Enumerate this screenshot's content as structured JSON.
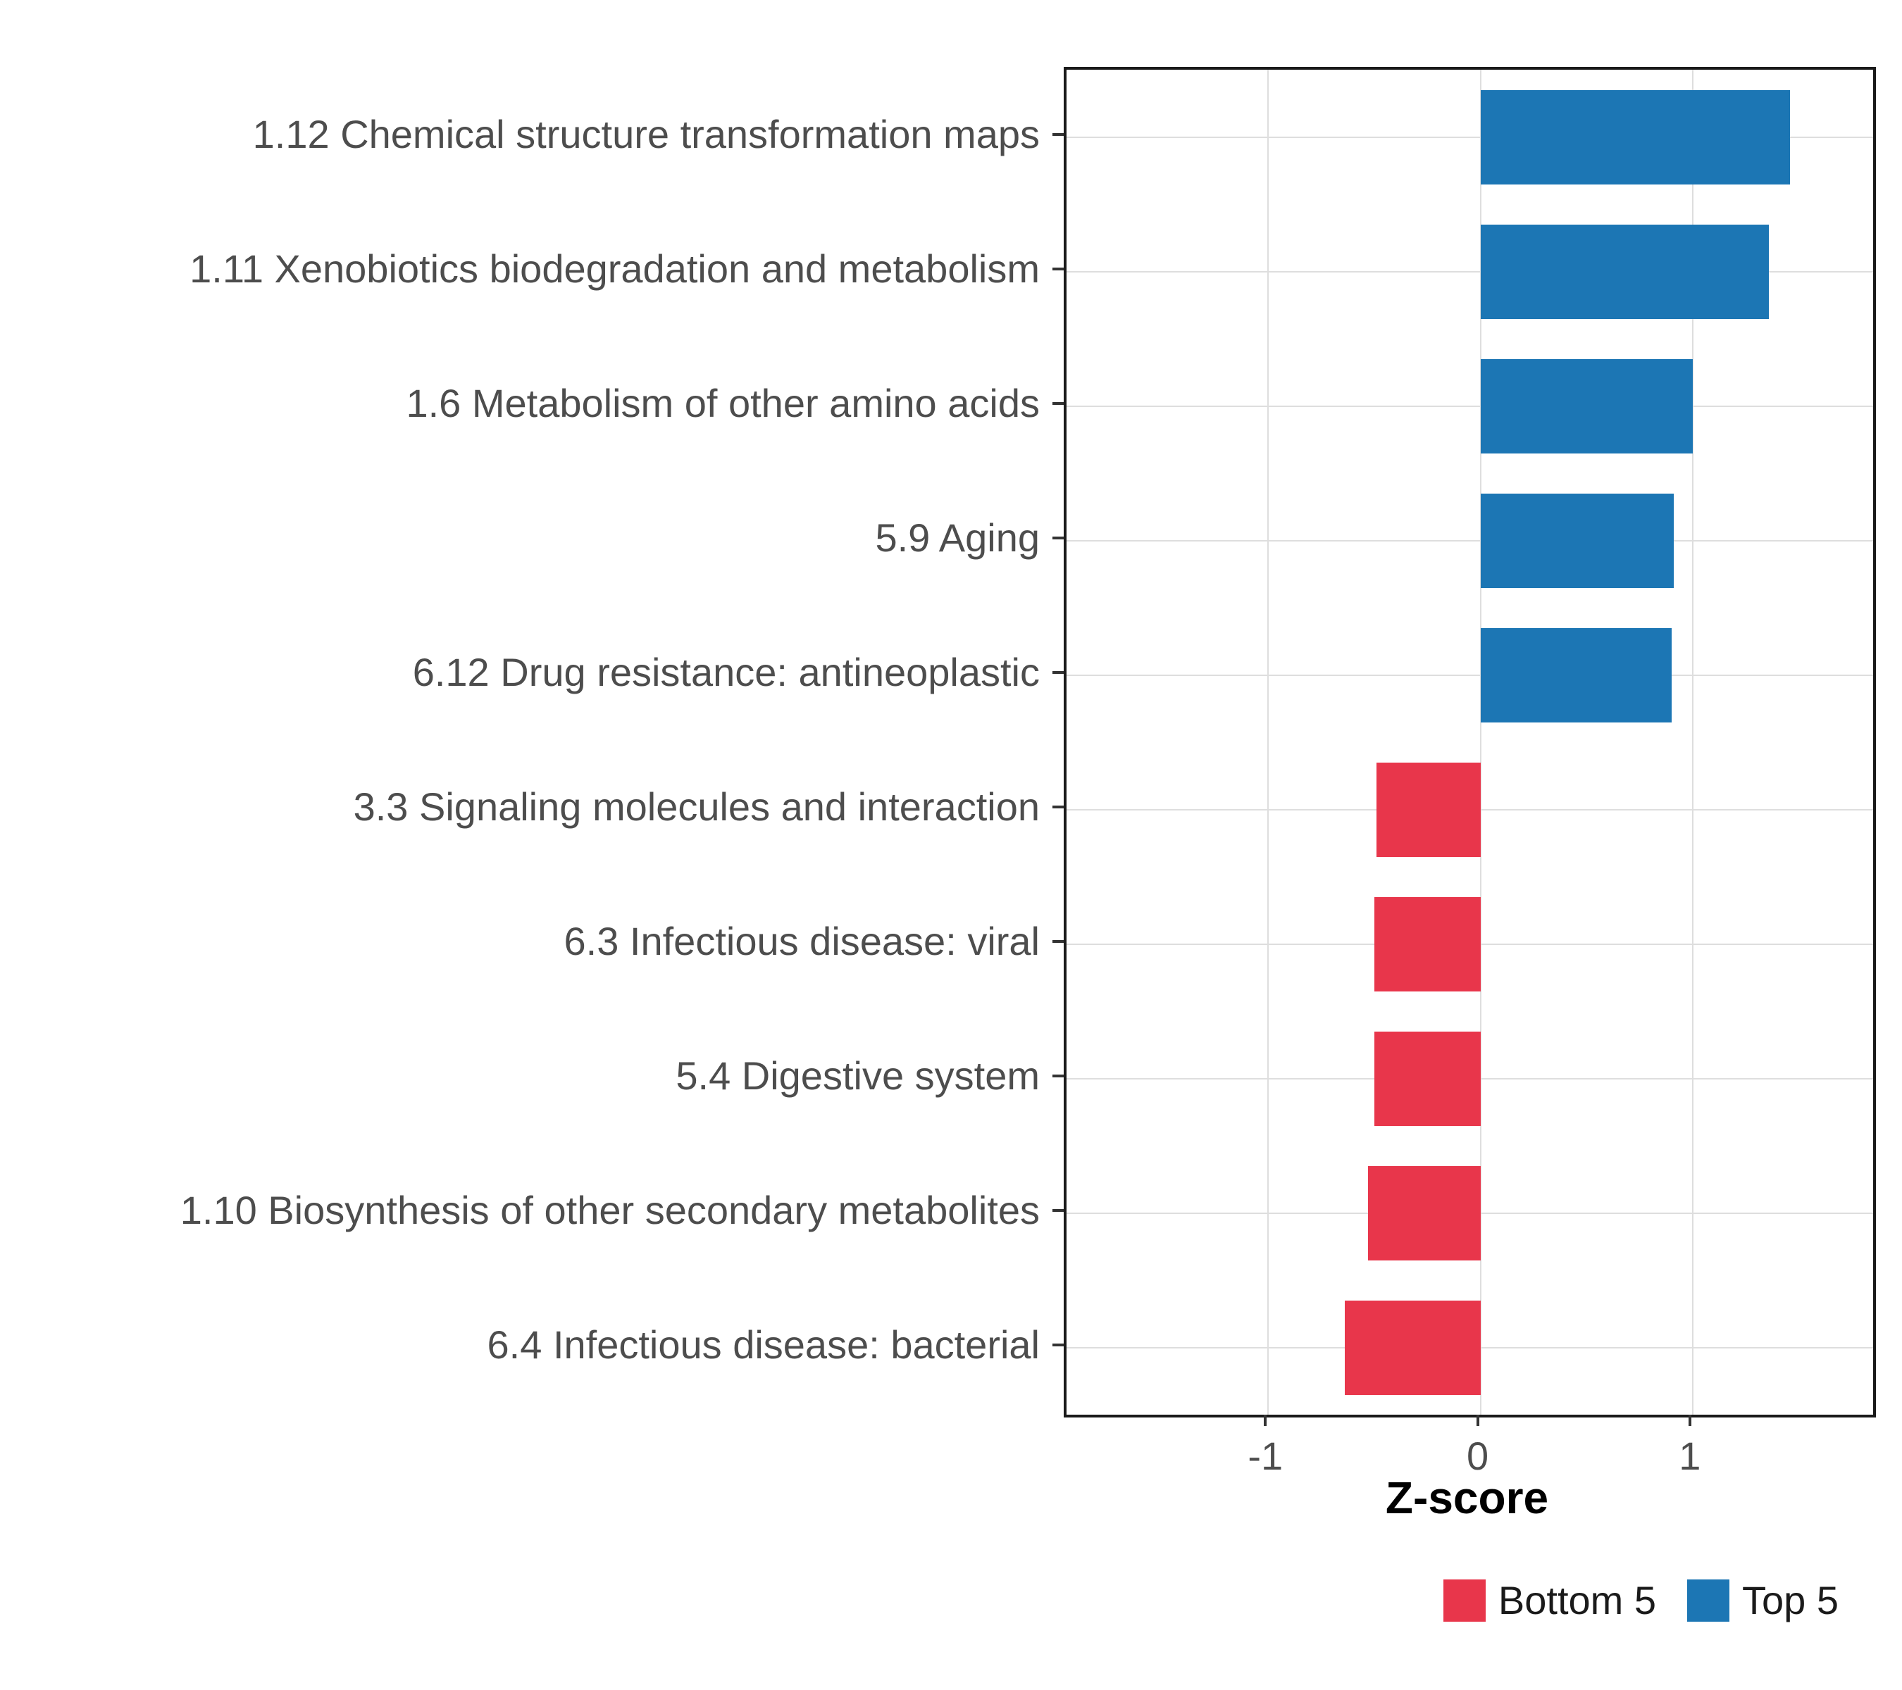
{
  "chart_data": {
    "type": "bar",
    "orientation": "horizontal",
    "title": "",
    "xlabel": "Z-score",
    "ylabel": "",
    "xlim": [
      -1.95,
      1.85
    ],
    "grid": true,
    "x_ticks": [
      {
        "value": -1,
        "label": "-1"
      },
      {
        "value": 0,
        "label": "0"
      },
      {
        "value": 1,
        "label": "1"
      }
    ],
    "categories": [
      "1.12 Chemical structure transformation maps",
      "1.11 Xenobiotics biodegradation and metabolism",
      "1.6 Metabolism of other amino acids",
      "5.9 Aging",
      "6.12 Drug resistance: antineoplastic",
      "3.3 Signaling molecules and interaction",
      "6.3 Infectious disease: viral",
      "5.4 Digestive system",
      "1.10 Biosynthesis of other secondary metabolites",
      "6.4 Infectious disease: bacterial"
    ],
    "values": [
      1.46,
      1.36,
      1.0,
      0.91,
      0.9,
      -0.49,
      -0.5,
      -0.5,
      -0.53,
      -0.64
    ],
    "groups": [
      "Top 5",
      "Top 5",
      "Top 5",
      "Top 5",
      "Top 5",
      "Bottom 5",
      "Bottom 5",
      "Bottom 5",
      "Bottom 5",
      "Bottom 5"
    ],
    "colors": {
      "Bottom 5": "#E8364B",
      "Top 5": "#1C76B4"
    },
    "legend": {
      "position": "bottom-right",
      "entries": [
        {
          "label": "Bottom 5",
          "color": "#E8364B"
        },
        {
          "label": "Top 5",
          "color": "#1C76B4"
        }
      ]
    }
  }
}
